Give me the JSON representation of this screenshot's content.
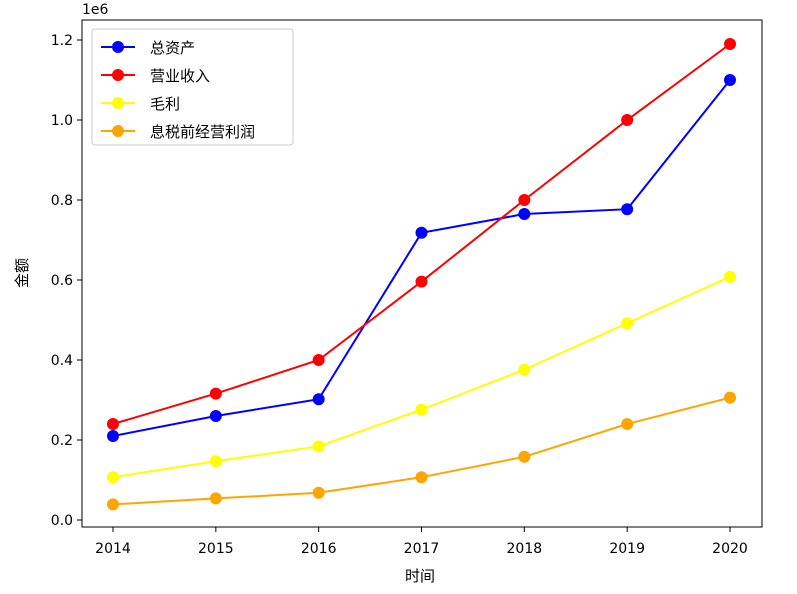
{
  "chart_data": {
    "type": "line",
    "x": [
      2014,
      2015,
      2016,
      2017,
      2018,
      2019,
      2020
    ],
    "xlabel": "时间",
    "ylabel": "金额",
    "y_offset_label": "1e6",
    "ylim": [
      0,
      1.25
    ],
    "y_ticks": [
      "0.0",
      "0.2",
      "0.4",
      "0.6",
      "0.8",
      "1.0",
      "1.2"
    ],
    "grid": false,
    "legend_position": "top-left",
    "series": [
      {
        "name": "总资产",
        "color": "#0000ff",
        "values": [
          0.21,
          0.26,
          0.302,
          0.718,
          0.765,
          0.777,
          1.1
        ]
      },
      {
        "name": "营业收入",
        "color": "#ff0000",
        "values": [
          0.24,
          0.316,
          0.4,
          0.596,
          0.8,
          1.0,
          1.19
        ]
      },
      {
        "name": "毛利",
        "color": "#ffff00",
        "values": [
          0.107,
          0.147,
          0.184,
          0.276,
          0.376,
          0.492,
          0.608
        ]
      },
      {
        "name": "息税前经营利润",
        "color": "#ffa500",
        "values": [
          0.039,
          0.054,
          0.068,
          0.107,
          0.158,
          0.24,
          0.306
        ]
      }
    ]
  }
}
